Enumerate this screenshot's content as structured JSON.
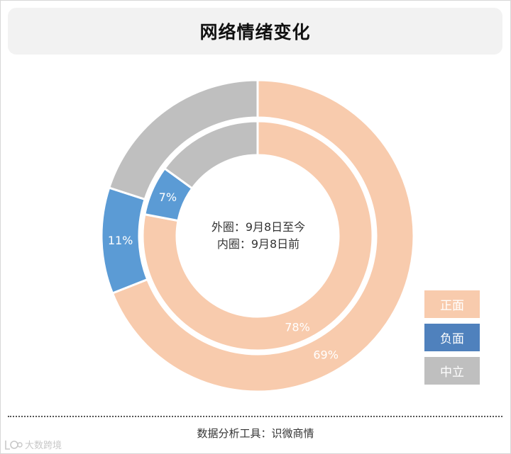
{
  "header": {
    "title": "网络情绪变化"
  },
  "center": {
    "line1": "外圈：9月8日至今",
    "line2": "内圈：9月8日前"
  },
  "legend": [
    {
      "label": "正面",
      "color": "#f8cbad",
      "text_color": "#ffffff"
    },
    {
      "label": "负面",
      "color": "#4f81bd",
      "text_color": "#ffffff"
    },
    {
      "label": "中立",
      "color": "#bfbfbf",
      "text_color": "#ffffff"
    }
  ],
  "chart_data": {
    "type": "pie",
    "variant": "double-donut",
    "categories": [
      "正面",
      "负面",
      "中立"
    ],
    "colors": {
      "正面": "#f8cbad",
      "负面": "#5b9bd5",
      "中立": "#bfbfbf"
    },
    "series": [
      {
        "ring": "outer",
        "values": [
          69,
          11,
          20
        ],
        "labels": [
          "69%",
          "11%",
          ""
        ]
      },
      {
        "ring": "inner",
        "values": [
          78,
          7,
          15
        ],
        "labels": [
          "78%",
          "7%",
          ""
        ]
      }
    ],
    "legend_position": "bottom-right"
  },
  "footer": {
    "source": "数据分析工具：识微商情"
  },
  "watermark": {
    "text": "大数跨境"
  }
}
